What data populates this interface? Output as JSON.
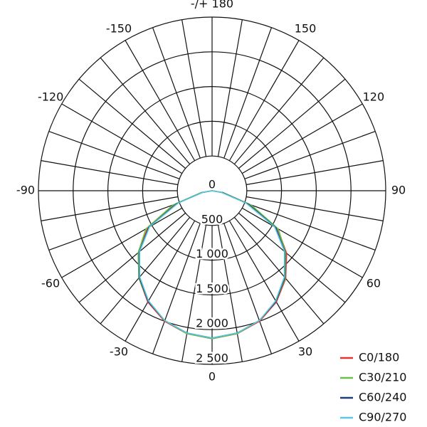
{
  "chart_data": {
    "type": "polar",
    "x": [
      -90,
      -80,
      -70,
      -60,
      -50,
      -40,
      -30,
      -20,
      -10,
      0,
      10,
      20,
      30,
      40,
      50,
      60,
      70,
      80,
      90
    ],
    "series": [
      {
        "name": "C0/180",
        "color": "#e3342f",
        "values": [
          0,
          150,
          560,
          1070,
          1380,
          1640,
          1850,
          2000,
          2090,
          2130,
          2090,
          2000,
          1850,
          1650,
          1400,
          1090,
          580,
          160,
          0
        ]
      },
      {
        "name": "C30/210",
        "color": "#6cc04a",
        "values": [
          0,
          160,
          600,
          1100,
          1390,
          1640,
          1840,
          1990,
          2090,
          2130,
          2090,
          1990,
          1840,
          1640,
          1380,
          1100,
          600,
          160,
          0
        ]
      },
      {
        "name": "C60/240",
        "color": "#1f3f6e",
        "values": [
          0,
          140,
          540,
          1050,
          1370,
          1630,
          1840,
          1990,
          2080,
          2120,
          2080,
          1990,
          1840,
          1630,
          1370,
          1060,
          550,
          150,
          0
        ]
      },
      {
        "name": "C90/270",
        "color": "#5bc8e0",
        "values": [
          0,
          130,
          520,
          1040,
          1360,
          1620,
          1830,
          1990,
          2080,
          2120,
          2080,
          1990,
          1830,
          1620,
          1360,
          1040,
          520,
          130,
          0
        ]
      }
    ],
    "rlim": [
      0,
      2500
    ],
    "rticks": [
      0,
      500,
      {
        "value": 1000,
        "label": "1 000"
      },
      {
        "value": 1500,
        "label": "1 500"
      },
      {
        "value": 2000,
        "label": "2 000"
      },
      {
        "value": 2500,
        "label": "2 500"
      }
    ],
    "angle_ticks": [
      0,
      30,
      60,
      90,
      120,
      150,
      {
        "value": 180,
        "label": "-/+ 180"
      },
      -150,
      -120,
      -90,
      -60,
      -30
    ]
  }
}
